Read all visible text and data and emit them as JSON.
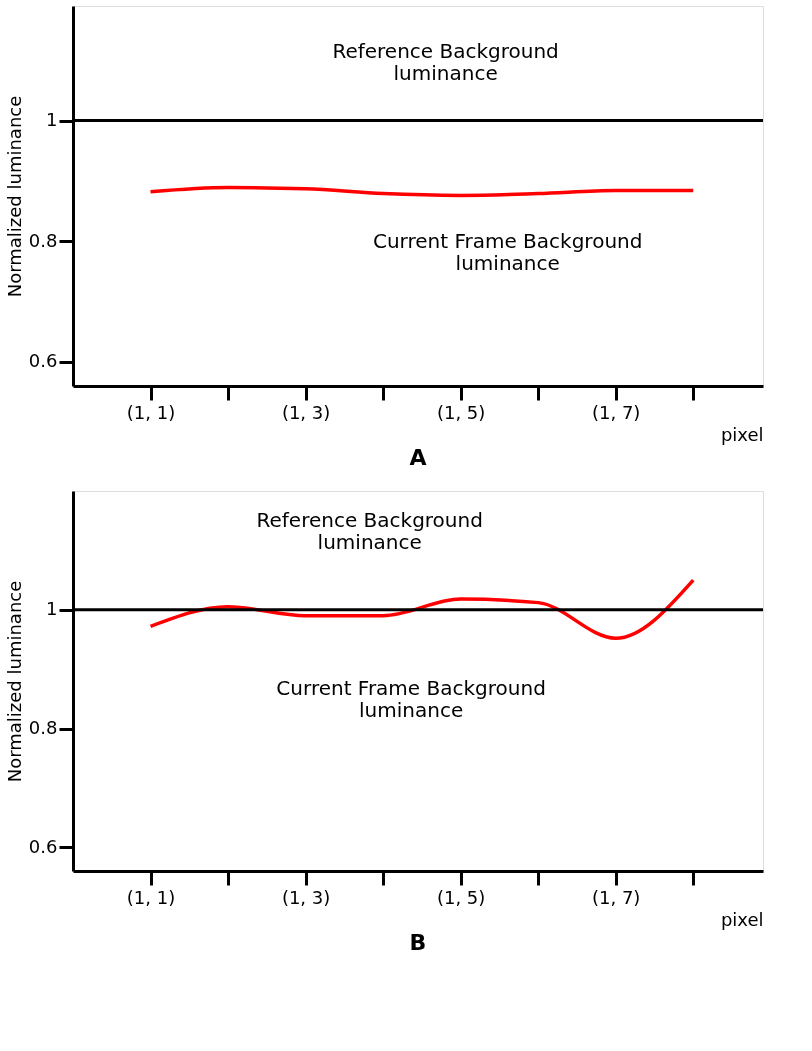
{
  "chart_data": [
    {
      "type": "line",
      "title": "A",
      "xlabel": "pixel",
      "ylabel": "Normalized luminance",
      "categories": [
        "(1, 1)",
        null,
        "(1, 3)",
        null,
        "(1, 5)",
        null,
        "(1, 7)",
        null
      ],
      "ylim": [
        0.56,
        1.19
      ],
      "yticks": [
        0.6,
        0.8,
        1
      ],
      "grid": false,
      "marker": "none",
      "line_style": "solid",
      "ref_lines": [
        {
          "axis": "y",
          "value": 1,
          "color": "#000000"
        }
      ],
      "series": [
        {
          "color": "#ff0000",
          "values": [
            0.882,
            0.889,
            0.887,
            0.879,
            0.876,
            0.879,
            0.884,
            0.884
          ]
        }
      ],
      "annotations": [
        "Reference Background\nluminance",
        "Current Frame Background\nluminance"
      ]
    },
    {
      "type": "line",
      "title": "B",
      "xlabel": "pixel",
      "ylabel": "Normalized luminance",
      "categories": [
        "(1, 1)",
        null,
        "(1, 3)",
        null,
        "(1, 5)",
        null,
        "(1, 7)",
        null
      ],
      "ylim": [
        0.56,
        1.2
      ],
      "yticks": [
        0.6,
        0.8,
        1
      ],
      "grid": false,
      "marker": "none",
      "line_style": "solid",
      "ref_lines": [
        {
          "axis": "y",
          "value": 1,
          "color": "#000000"
        }
      ],
      "series": [
        {
          "color": "#ff0000",
          "values": [
            0.972,
            1.005,
            0.99,
            0.99,
            1.018,
            1.012,
            0.952,
            1.05
          ]
        }
      ],
      "annotations": [
        "Reference Background\nluminance",
        "Current Frame Background\nluminance"
      ]
    }
  ]
}
